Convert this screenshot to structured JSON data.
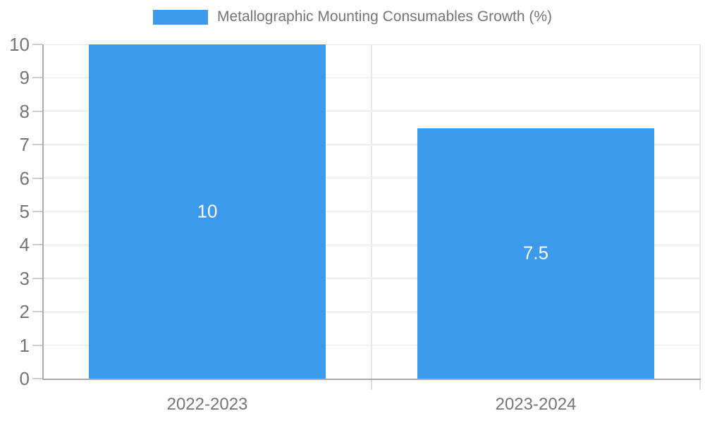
{
  "chart_data": {
    "type": "bar",
    "title": "Metallographic Mounting Consumables Growth (%)",
    "categories": [
      "2022-2023",
      "2023-2024"
    ],
    "values": [
      10,
      7.5
    ],
    "bar_labels": [
      "10",
      "7.5"
    ],
    "xlabel": "",
    "ylabel": "",
    "ylim": [
      0,
      10
    ],
    "ytick_step": 1,
    "ytick_labels": [
      "0",
      "1",
      "2",
      "3",
      "4",
      "5",
      "6",
      "7",
      "8",
      "9",
      "10"
    ],
    "grid": true,
    "legend_position": "top-center",
    "colors": {
      "bar": "#3C99EC",
      "axis_text": "#757575",
      "bar_label_text": "#ffffff",
      "grid_line": "#e6e6e6",
      "axis_line": "#ababab",
      "background": "#ffffff"
    }
  }
}
